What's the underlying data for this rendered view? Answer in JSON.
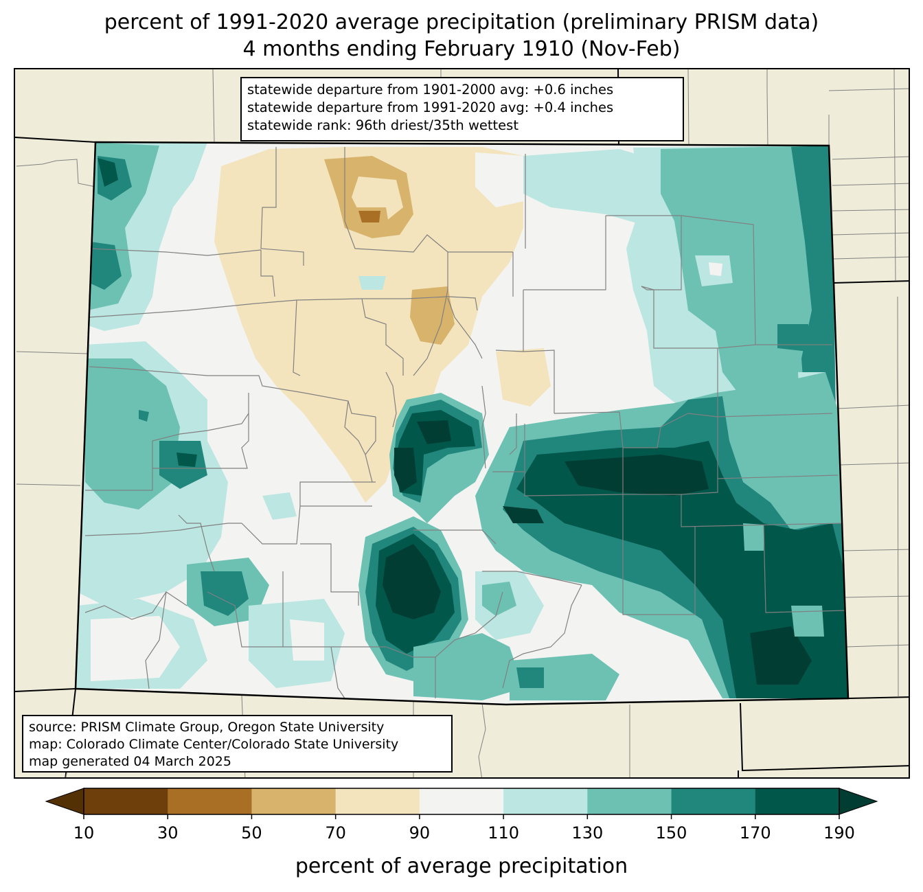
{
  "titles": {
    "line1": "percent of 1991-2020 average precipitation (preliminary PRISM data)",
    "line2": "4 months ending February 1910 (Nov-Feb)"
  },
  "stats_box": {
    "line1": "statewide departure from 1901-2000 avg: +0.6 inches",
    "line2": "statewide departure from 1991-2020 avg: +0.4 inches",
    "line3": "statewide rank: 96th driest/35th wettest"
  },
  "source_box": {
    "line1": "source: PRISM Climate Group, Oregon State University",
    "line2": "map: Colorado Climate Center/Colorado State University",
    "line3": "map generated 04 March 2025"
  },
  "colorbar": {
    "label": "percent of average precipitation",
    "ticks": [
      "10",
      "30",
      "50",
      "70",
      "90",
      "110",
      "130",
      "150",
      "170",
      "190"
    ],
    "bins": [
      {
        "range": "<10",
        "color": "#543005"
      },
      {
        "range": "10-30",
        "color": "#6f3f0b"
      },
      {
        "range": "30-50",
        "color": "#a96f25"
      },
      {
        "range": "50-70",
        "color": "#d8b36c"
      },
      {
        "range": "70-90",
        "color": "#f3e4bd"
      },
      {
        "range": "90-110",
        "color": "#f3f4f2"
      },
      {
        "range": "110-130",
        "color": "#bce6e1"
      },
      {
        "range": "130-150",
        "color": "#6dc1b3"
      },
      {
        "range": "150-170",
        "color": "#21877d"
      },
      {
        "range": "170-190",
        "color": "#02574b"
      },
      {
        "range": ">190",
        "color": "#013d33"
      }
    ],
    "extend": "both"
  },
  "map": {
    "background_color": "#efedda",
    "county_line_color": "#808080",
    "state_line_color": "#000000"
  }
}
